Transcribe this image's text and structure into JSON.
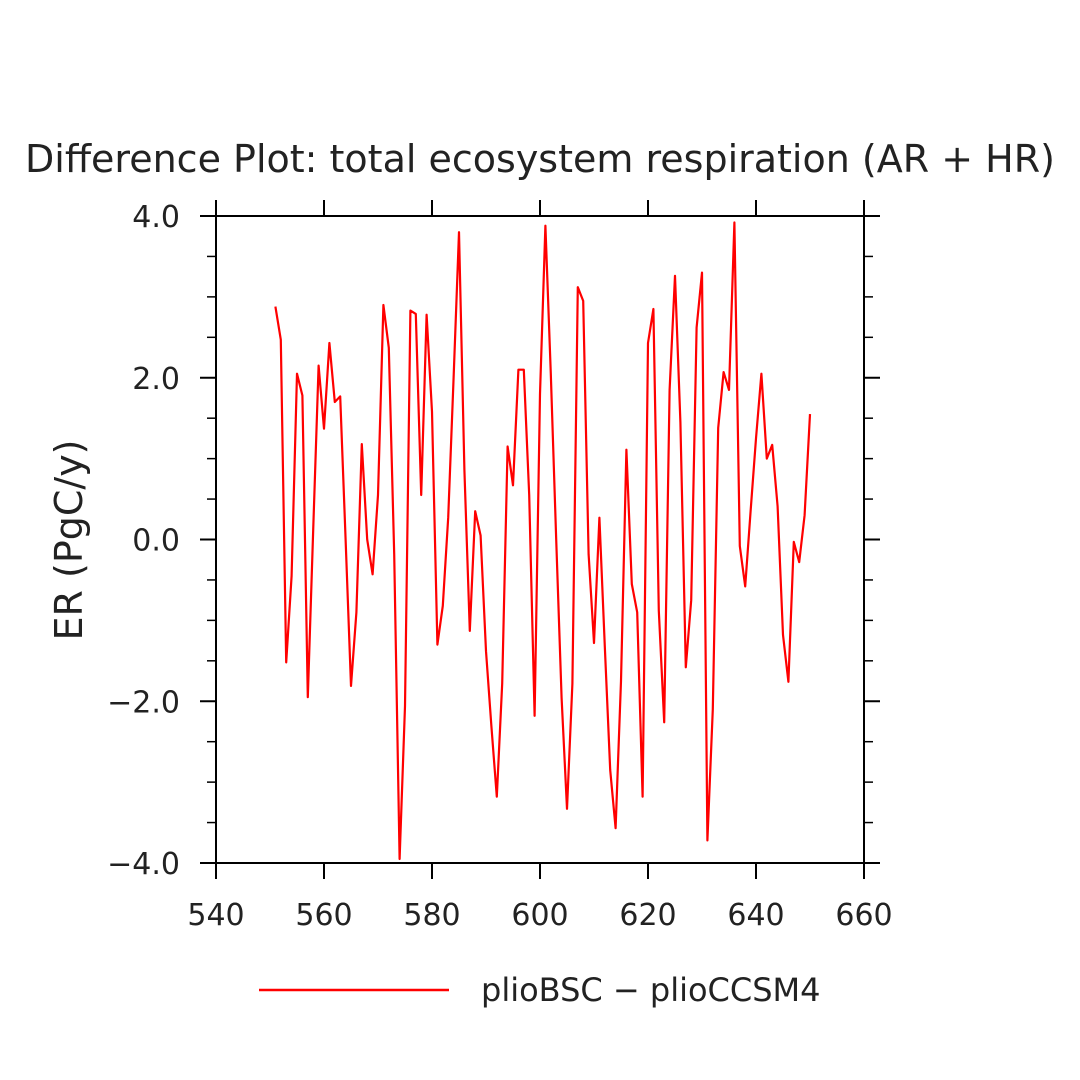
{
  "chart_data": {
    "type": "line",
    "title": "Difference Plot: total ecosystem respiration (AR + HR)",
    "xlabel": "",
    "ylabel": "ER  (PgC/y)",
    "xlim": [
      540,
      660
    ],
    "ylim": [
      -4.0,
      4.0
    ],
    "x_ticks": [
      540,
      560,
      580,
      600,
      620,
      640,
      660
    ],
    "x_tick_labels": [
      "540",
      "560",
      "580",
      "600",
      "620",
      "640",
      "660"
    ],
    "y_ticks": [
      -4.0,
      -2.0,
      0.0,
      2.0,
      4.0
    ],
    "y_tick_labels": [
      "−4.0",
      "−2.0",
      "0.0",
      "2.0",
      "4.0"
    ],
    "grid": false,
    "legend_position": "bottom-center",
    "series": [
      {
        "name": "plioBSC − plioCCSM4",
        "color": "#ff0000",
        "x": [
          551,
          552,
          553,
          554,
          555,
          556,
          557,
          558,
          559,
          560,
          561,
          562,
          563,
          564,
          565,
          566,
          567,
          568,
          569,
          570,
          571,
          572,
          573,
          574,
          575,
          576,
          577,
          578,
          579,
          580,
          581,
          582,
          583,
          584,
          585,
          586,
          587,
          588,
          589,
          590,
          591,
          592,
          593,
          594,
          595,
          596,
          597,
          598,
          599,
          600,
          601,
          602,
          603,
          604,
          605,
          606,
          607,
          608,
          609,
          610,
          611,
          612,
          613,
          614,
          615,
          616,
          617,
          618,
          619,
          620,
          621,
          622,
          623,
          624,
          625,
          626,
          627,
          628,
          629,
          630,
          631,
          632,
          633,
          634,
          635,
          636,
          637,
          638,
          639,
          640,
          641,
          642,
          643,
          644,
          645,
          646,
          647,
          648,
          649,
          650
        ],
        "y": [
          2.88,
          2.47,
          -1.52,
          -0.45,
          2.05,
          1.78,
          -1.95,
          0.12,
          2.15,
          1.37,
          2.43,
          1.7,
          1.77,
          0.0,
          -1.81,
          -0.9,
          1.18,
          0.0,
          -0.43,
          0.55,
          2.9,
          2.37,
          -0.18,
          -3.95,
          -2.06,
          2.83,
          2.79,
          0.55,
          2.78,
          1.58,
          -1.3,
          -0.82,
          0.27,
          2.0,
          3.8,
          0.86,
          -1.13,
          0.35,
          0.05,
          -1.38,
          -2.31,
          -3.18,
          -1.78,
          1.15,
          0.67,
          2.1,
          2.1,
          0.55,
          -2.18,
          1.8,
          3.88,
          2.05,
          0.0,
          -1.96,
          -3.33,
          -1.78,
          3.12,
          2.95,
          -0.18,
          -1.28,
          0.27,
          -1.32,
          -2.85,
          -3.57,
          -1.75,
          1.11,
          -0.55,
          -0.9,
          -3.18,
          2.43,
          2.85,
          -0.88,
          -2.26,
          1.85,
          3.26,
          1.45,
          -1.58,
          -0.75,
          2.62,
          3.3,
          -3.72,
          -2.1,
          1.38,
          2.07,
          1.85,
          3.92,
          -0.08,
          -0.58,
          0.35,
          1.25,
          2.05,
          1.0,
          1.17,
          0.41,
          -1.18,
          -1.76,
          -0.03,
          -0.28,
          0.3,
          1.55
        ]
      }
    ]
  }
}
